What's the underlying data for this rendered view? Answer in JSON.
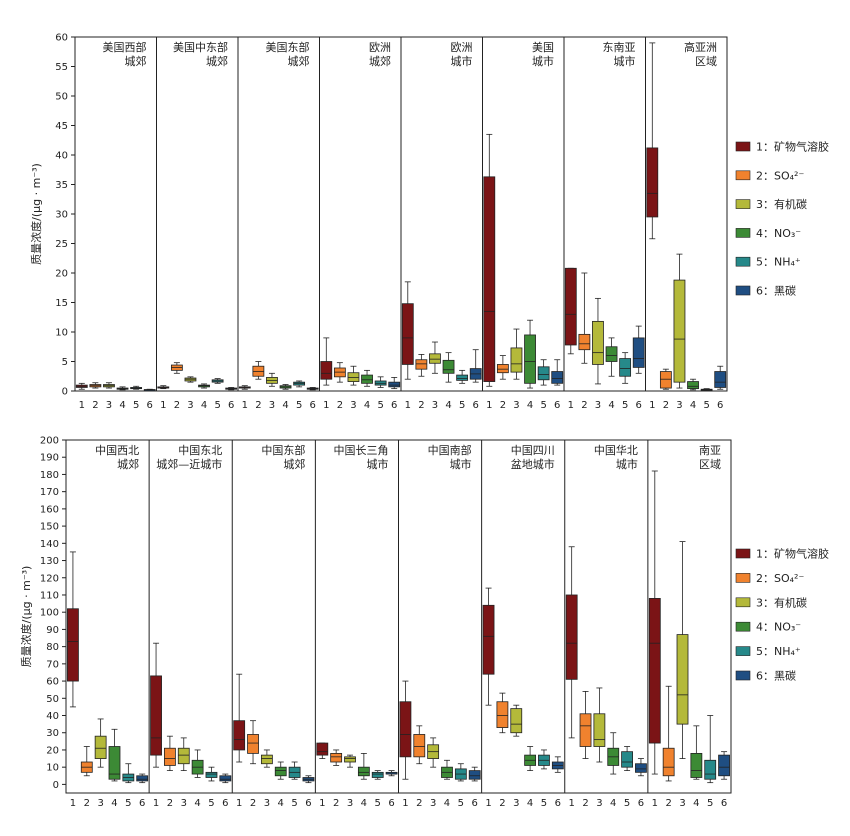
{
  "colors": [
    "#7b1416",
    "#f0822e",
    "#b4b93a",
    "#3c8a35",
    "#26898a",
    "#1f4e82"
  ],
  "legend": [
    "1：矿物气溶胶",
    "2：SO₄²⁻",
    "3：有机碳",
    "4：NO₃⁻",
    "5：NH₄⁺",
    "6：黑碳"
  ],
  "chart_data": [
    {
      "type": "box",
      "ylabel": "质量浓度/(μg · m⁻³)",
      "ylim": [
        0,
        60
      ],
      "yticks": [
        0,
        5,
        10,
        15,
        20,
        25,
        30,
        35,
        40,
        45,
        50,
        55,
        60
      ],
      "xticks": [
        "1",
        "2",
        "3",
        "4",
        "5",
        "6"
      ],
      "panels": [
        {
          "title": [
            "美国西部",
            "城郊"
          ],
          "boxes": [
            [
              0.3,
              0.6,
              0.8,
              1.0,
              1.3
            ],
            [
              0.5,
              0.7,
              0.9,
              1.1,
              1.4
            ],
            [
              0.5,
              0.7,
              0.9,
              1.1,
              1.4
            ],
            [
              0.2,
              0.3,
              0.4,
              0.5,
              0.7
            ],
            [
              0.3,
              0.4,
              0.5,
              0.6,
              0.8
            ],
            [
              0.1,
              0.15,
              0.2,
              0.25,
              0.3
            ]
          ]
        },
        {
          "title": [
            "美国中东部",
            "城郊"
          ],
          "boxes": [
            [
              0.4,
              0.5,
              0.6,
              0.7,
              0.9
            ],
            [
              3.0,
              3.5,
              4.0,
              4.4,
              4.8
            ],
            [
              1.5,
              1.7,
              2.0,
              2.2,
              2.4
            ],
            [
              0.5,
              0.7,
              0.9,
              1.0,
              1.2
            ],
            [
              1.3,
              1.5,
              1.7,
              1.9,
              2.1
            ],
            [
              0.2,
              0.3,
              0.4,
              0.5,
              0.6
            ]
          ]
        },
        {
          "title": [
            "美国东部",
            "城郊"
          ],
          "boxes": [
            [
              0.3,
              0.5,
              0.6,
              0.7,
              0.9
            ],
            [
              2.0,
              2.5,
              3.3,
              4.2,
              5.0
            ],
            [
              0.8,
              1.3,
              1.8,
              2.3,
              3.0
            ],
            [
              0.3,
              0.5,
              0.7,
              0.9,
              1.1
            ],
            [
              0.7,
              1.0,
              1.3,
              1.5,
              1.7
            ],
            [
              0.2,
              0.3,
              0.4,
              0.5,
              0.6
            ]
          ]
        },
        {
          "title": [
            "欧洲",
            "城郊"
          ],
          "boxes": [
            [
              1.0,
              2.0,
              3.0,
              5.0,
              9.0
            ],
            [
              1.5,
              2.4,
              3.2,
              3.9,
              4.8
            ],
            [
              1.0,
              1.6,
              2.3,
              3.1,
              4.2
            ],
            [
              0.8,
              1.3,
              1.9,
              2.7,
              3.5
            ],
            [
              0.6,
              1.0,
              1.3,
              1.7,
              2.4
            ],
            [
              0.4,
              0.7,
              1.0,
              1.5,
              2.3
            ]
          ]
        },
        {
          "title": [
            "欧洲",
            "城市"
          ],
          "boxes": [
            [
              2.0,
              4.5,
              9.0,
              14.8,
              18.5
            ],
            [
              2.5,
              3.7,
              4.6,
              5.3,
              6.2
            ],
            [
              3.0,
              4.7,
              5.4,
              6.3,
              8.3
            ],
            [
              1.5,
              3.0,
              3.6,
              5.2,
              6.5
            ],
            [
              1.3,
              1.8,
              2.1,
              2.7,
              3.5
            ],
            [
              1.5,
              2.0,
              2.9,
              3.8,
              7.0
            ]
          ]
        },
        {
          "title": [
            "美国",
            "城市"
          ],
          "boxes": [
            [
              0.8,
              1.6,
              13.5,
              36.3,
              43.5
            ],
            [
              2.0,
              3.1,
              3.7,
              4.5,
              6.0
            ],
            [
              2.0,
              3.2,
              4.6,
              7.3,
              10.5
            ],
            [
              0.5,
              1.3,
              5.0,
              9.5,
              12.0
            ],
            [
              1.0,
              1.9,
              2.8,
              4.1,
              5.3
            ],
            [
              1.0,
              1.3,
              2.1,
              3.3,
              5.3
            ]
          ]
        },
        {
          "title": [
            "东南亚",
            "城市"
          ],
          "boxes": [
            [
              6.3,
              7.8,
              13.0,
              20.8,
              20.8
            ],
            [
              4.7,
              7.0,
              8.0,
              9.6,
              20.0
            ],
            [
              1.2,
              4.5,
              6.5,
              11.8,
              15.7
            ],
            [
              2.5,
              5.0,
              6.0,
              7.5,
              9.0
            ],
            [
              1.3,
              2.5,
              3.8,
              5.5,
              6.5
            ],
            [
              3.0,
              4.0,
              5.5,
              9.0,
              11.0
            ]
          ]
        },
        {
          "title": [
            "高亚洲",
            "区域"
          ],
          "boxes": [
            [
              25.8,
              29.5,
              33.5,
              41.2,
              59.0
            ],
            [
              0.3,
              0.5,
              2.0,
              3.3,
              3.7
            ],
            [
              0.5,
              1.5,
              8.8,
              18.8,
              23.2
            ],
            [
              0.2,
              0.4,
              0.8,
              1.6,
              2.0
            ],
            [
              0.1,
              0.15,
              0.2,
              0.3,
              0.4
            ],
            [
              0.3,
              0.6,
              1.5,
              3.3,
              4.2
            ]
          ]
        }
      ]
    },
    {
      "type": "box",
      "ylabel": "质量浓度/(μg · m⁻³)",
      "ylim": [
        -5,
        200
      ],
      "yticks": [
        0,
        10,
        20,
        30,
        40,
        50,
        60,
        70,
        80,
        90,
        100,
        110,
        120,
        130,
        140,
        150,
        160,
        170,
        180,
        190,
        200
      ],
      "xticks": [
        "1",
        "2",
        "3",
        "4",
        "5",
        "6"
      ],
      "panels": [
        {
          "title": [
            "中国西北",
            "城郊"
          ],
          "boxes": [
            [
              45,
              60,
              83,
              102,
              135
            ],
            [
              5,
              7,
              10,
              13,
              22
            ],
            [
              10,
              15,
              21,
              28,
              38
            ],
            [
              2,
              3,
              6,
              22,
              32
            ],
            [
              1,
              2,
              4,
              6,
              12
            ],
            [
              1,
              2,
              3,
              5,
              6
            ]
          ]
        },
        {
          "title": [
            "中国东北",
            "城郊—近城市"
          ],
          "boxes": [
            [
              10,
              17,
              27,
              63,
              82
            ],
            [
              8,
              11,
              15,
              21,
              28
            ],
            [
              8,
              12,
              17,
              21,
              27
            ],
            [
              4,
              6,
              10,
              14,
              20
            ],
            [
              2,
              4,
              6,
              7,
              10
            ],
            [
              1,
              2,
              3,
              5,
              6
            ]
          ]
        },
        {
          "title": [
            "中国东部",
            "城郊"
          ],
          "boxes": [
            [
              13,
              20,
              26,
              37,
              64
            ],
            [
              12,
              18,
              24,
              29,
              37
            ],
            [
              10,
              12,
              15,
              17,
              20
            ],
            [
              3,
              5,
              8,
              10,
              13
            ],
            [
              3,
              4,
              7,
              10,
              13
            ],
            [
              1,
              2,
              3,
              4,
              5
            ]
          ]
        },
        {
          "title": [
            "中国长三角",
            "城市"
          ],
          "boxes": [
            [
              15,
              17,
              19,
              24,
              24
            ],
            [
              11,
              13,
              16,
              18,
              20
            ],
            [
              10,
              13,
              15,
              16,
              17
            ],
            [
              3,
              5,
              7,
              10,
              18
            ],
            [
              3,
              4,
              6,
              7,
              8
            ],
            [
              5,
              6,
              6,
              7,
              8
            ]
          ]
        },
        {
          "title": [
            "中国南部",
            "城市"
          ],
          "boxes": [
            [
              3,
              16,
              29,
              48,
              60
            ],
            [
              12,
              16,
              22,
              29,
              34
            ],
            [
              10,
              15,
              19,
              23,
              27
            ],
            [
              3,
              4,
              7,
              10,
              14
            ],
            [
              2,
              3,
              6,
              9,
              12
            ],
            [
              2,
              3,
              5,
              8,
              10
            ]
          ]
        },
        {
          "title": [
            "中国四川",
            "盆地城市"
          ],
          "boxes": [
            [
              46,
              64,
              86,
              104,
              114
            ],
            [
              30,
              33,
              40,
              48,
              53
            ],
            [
              28,
              30,
              35,
              44,
              46
            ],
            [
              8,
              11,
              14,
              17,
              22
            ],
            [
              9,
              11,
              14,
              17,
              20
            ],
            [
              7,
              9,
              11,
              13,
              16
            ]
          ]
        },
        {
          "title": [
            "中国华北",
            "城市"
          ],
          "boxes": [
            [
              27,
              61,
              82,
              110,
              138
            ],
            [
              15,
              22,
              34,
              41,
              54
            ],
            [
              13,
              22,
              26,
              41,
              56
            ],
            [
              6,
              11,
              16,
              21,
              30
            ],
            [
              8,
              10,
              13,
              19,
              22
            ],
            [
              5,
              7,
              9,
              12,
              15
            ]
          ]
        },
        {
          "title": [
            "南亚",
            "区域"
          ],
          "boxes": [
            [
              6,
              24,
              82,
              108,
              182
            ],
            [
              2,
              5,
              10,
              21,
              57
            ],
            [
              15,
              35,
              52,
              87,
              141
            ],
            [
              3,
              4,
              8,
              18,
              34
            ],
            [
              1,
              3,
              6,
              14,
              40
            ],
            [
              3,
              5,
              10,
              17,
              19
            ]
          ]
        }
      ]
    }
  ]
}
